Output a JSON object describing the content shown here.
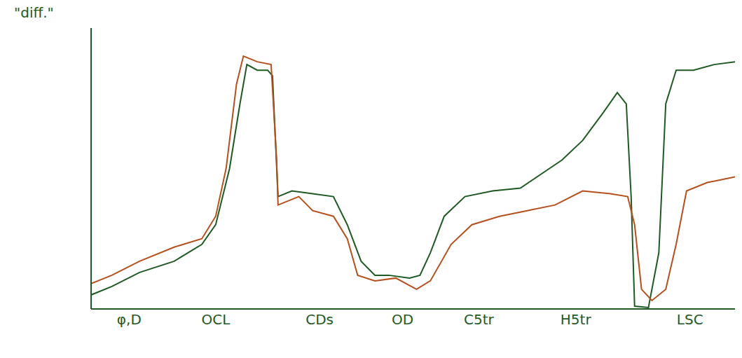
{
  "chart_data": {
    "type": "line",
    "y_label": "\"diff.\"",
    "xlim": [
      0,
      93
    ],
    "ylim": [
      0,
      100
    ],
    "xticks": [
      {
        "value": 5.5,
        "label": "φ,D"
      },
      {
        "value": 18,
        "label": "OCL"
      },
      {
        "value": 33,
        "label": "CDs"
      },
      {
        "value": 45,
        "label": "OD"
      },
      {
        "value": 56,
        "label": "C5tr"
      },
      {
        "value": 70,
        "label": "H5tr"
      },
      {
        "value": 86.5,
        "label": "LSC"
      }
    ],
    "tick_labels": "x",
    "grid": false,
    "series": [
      {
        "color": "#1f5a23",
        "x": [
          0,
          3,
          7,
          12,
          16,
          18,
          20,
          21.5,
          22.5,
          24,
          25.5,
          26.2,
          27,
          29,
          32,
          35,
          37,
          39,
          41,
          43,
          46,
          47.5,
          49,
          51,
          54,
          58,
          62,
          65,
          68,
          71,
          74,
          76,
          77.3,
          78,
          78.5,
          80.5,
          82,
          83,
          84.5,
          87,
          90,
          93
        ],
        "values": [
          5,
          8,
          13,
          17,
          23,
          30,
          50,
          73,
          87,
          85,
          85,
          83,
          40,
          42,
          41,
          40,
          30,
          17,
          12,
          12,
          11,
          12,
          20,
          33,
          40,
          42,
          43,
          48,
          53,
          60,
          70,
          77,
          73,
          40,
          1,
          0.5,
          20,
          73,
          85,
          85,
          87,
          88
        ]
      },
      {
        "color": "#b5501e",
        "x": [
          0,
          3,
          7,
          12,
          16,
          18,
          19.5,
          21,
          22,
          24,
          26,
          26.8,
          27,
          30,
          32,
          35,
          37,
          38.5,
          41,
          44,
          47,
          49,
          52,
          55,
          59,
          63,
          67,
          71,
          75,
          77.5,
          78.5,
          79.5,
          81,
          83,
          84.5,
          86,
          89,
          93
        ],
        "values": [
          9,
          12,
          17,
          22,
          25,
          33,
          50,
          80,
          90,
          88,
          87,
          53,
          37,
          40,
          35,
          33,
          25,
          12,
          10,
          11,
          7,
          10,
          23,
          30,
          33,
          35,
          37,
          42,
          41,
          40,
          30,
          7,
          3,
          7,
          23,
          42,
          45,
          47
        ]
      }
    ]
  }
}
